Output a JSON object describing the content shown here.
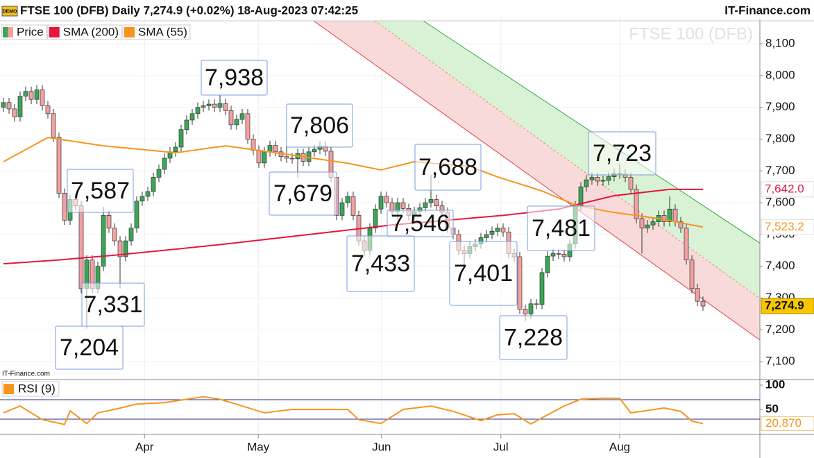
{
  "chart_data": {
    "type": "candlestick",
    "badge": "DEMO",
    "title": "FTSE 100 (DFB) Daily 7,274.9 (+0.02%) 18-Aug-2023 07:42:25",
    "source": "IT-Finance.com",
    "watermark": "FTSE 100 (DFB)",
    "credit": "IT-Finance.com",
    "xlim": [
      -0.625,
      136.25
    ],
    "xticks": [
      {
        "value": 25.4,
        "label": "Apr"
      },
      {
        "value": 45.9,
        "label": "May"
      },
      {
        "value": 68.1,
        "label": "Jun"
      },
      {
        "value": 89.6,
        "label": "Jul"
      },
      {
        "value": 111,
        "label": "Aug"
      }
    ],
    "ylim": [
      7048,
      8183
    ],
    "yticks": [
      {
        "value": 7100,
        "label": "7,100"
      },
      {
        "value": 7200,
        "label": "7,200"
      },
      {
        "value": 7300,
        "label": "7,300"
      },
      {
        "value": 7400,
        "label": "7,400"
      },
      {
        "value": 7500,
        "label": "7,500"
      },
      {
        "value": 7600,
        "label": "7,600"
      },
      {
        "value": 7700,
        "label": "7,700"
      },
      {
        "value": 7800,
        "label": "7,800"
      },
      {
        "value": 7900,
        "label": "7,900"
      },
      {
        "value": 8000,
        "label": "8,000"
      },
      {
        "value": 8100,
        "label": "8,100"
      }
    ],
    "grid": true,
    "price": {
      "name": "Price",
      "up_color": "#3aa655",
      "down_color": "#f2a0a0",
      "last_label": "7,274.9",
      "open": [
        7900,
        7915,
        7895,
        7870,
        7935,
        7950,
        7925,
        7955,
        7905,
        7880,
        7805,
        7630,
        7545,
        7610,
        7590,
        7330,
        7420,
        7330,
        7400,
        7560,
        7520,
        7480,
        7430,
        7480,
        7520,
        7605,
        7620,
        7635,
        7680,
        7705,
        7740,
        7760,
        7775,
        7830,
        7860,
        7880,
        7900,
        7905,
        7910,
        7900,
        7912,
        7890,
        7845,
        7862,
        7880,
        7800,
        7765,
        7725,
        7760,
        7780,
        7760,
        7745,
        7740,
        7738,
        7755,
        7730,
        7760,
        7768,
        7778,
        7762,
        7680,
        7560,
        7600,
        7620,
        7560,
        7480,
        7450,
        7520,
        7580,
        7620,
        7600,
        7572,
        7600,
        7582,
        7560,
        7572,
        7584,
        7600,
        7610,
        7590,
        7570,
        7520,
        7500,
        7450,
        7440,
        7462,
        7470,
        7490,
        7500,
        7510,
        7520,
        7508,
        7440,
        7430,
        7265,
        7250,
        7282,
        7280,
        7380,
        7432,
        7440,
        7438,
        7430,
        7470,
        7590,
        7650,
        7672,
        7680,
        7668,
        7670,
        7682,
        7692,
        7690,
        7680,
        7642,
        7550,
        7520,
        7530,
        7540,
        7560,
        7540,
        7580,
        7540,
        7520,
        7420,
        7330,
        7290
      ],
      "high": [
        7930,
        7930,
        7910,
        7950,
        7965,
        7965,
        7970,
        7970,
        7920,
        7895,
        7820,
        7645,
        7625,
        7625,
        7605,
        7435,
        7435,
        7415,
        7587,
        7575,
        7535,
        7495,
        7495,
        7535,
        7620,
        7635,
        7650,
        7695,
        7720,
        7755,
        7775,
        7790,
        7845,
        7875,
        7895,
        7915,
        7920,
        7925,
        7925,
        7938,
        7927,
        7905,
        7877,
        7895,
        7895,
        7815,
        7780,
        7775,
        7795,
        7795,
        7775,
        7806,
        7755,
        7770,
        7770,
        7775,
        7783,
        7793,
        7793,
        7777,
        7695,
        7615,
        7635,
        7635,
        7575,
        7495,
        7535,
        7595,
        7635,
        7635,
        7615,
        7615,
        7615,
        7597,
        7587,
        7599,
        7615,
        7688,
        7625,
        7605,
        7585,
        7535,
        7515,
        7465,
        7477,
        7485,
        7505,
        7515,
        7525,
        7535,
        7535,
        7523,
        7455,
        7445,
        7280,
        7297,
        7297,
        7395,
        7447,
        7455,
        7455,
        7453,
        7485,
        7605,
        7665,
        7687,
        7695,
        7695,
        7685,
        7697,
        7707,
        7723,
        7705,
        7695,
        7657,
        7565,
        7545,
        7555,
        7575,
        7575,
        7620,
        7595,
        7555,
        7535,
        7435,
        7345,
        7305
      ],
      "low": [
        7885,
        7880,
        7855,
        7855,
        7920,
        7910,
        7910,
        7890,
        7865,
        7790,
        7615,
        7530,
        7530,
        7575,
        7315,
        7204,
        7315,
        7315,
        7385,
        7505,
        7465,
        7331,
        7415,
        7465,
        7505,
        7590,
        7605,
        7620,
        7665,
        7690,
        7725,
        7745,
        7760,
        7815,
        7845,
        7865,
        7885,
        7890,
        7885,
        7885,
        7875,
        7830,
        7830,
        7847,
        7785,
        7750,
        7710,
        7710,
        7745,
        7745,
        7730,
        7725,
        7723,
        7679,
        7715,
        7715,
        7745,
        7753,
        7747,
        7665,
        7545,
        7545,
        7585,
        7545,
        7465,
        7433,
        7435,
        7505,
        7565,
        7585,
        7557,
        7546,
        7567,
        7545,
        7545,
        7557,
        7569,
        7585,
        7575,
        7555,
        7505,
        7485,
        7435,
        7401,
        7425,
        7447,
        7455,
        7475,
        7485,
        7495,
        7493,
        7425,
        7415,
        7250,
        7228,
        7235,
        7265,
        7265,
        7365,
        7417,
        7423,
        7415,
        7415,
        7455,
        7575,
        7635,
        7657,
        7653,
        7653,
        7655,
        7667,
        7675,
        7665,
        7627,
        7535,
        7440,
        7505,
        7515,
        7525,
        7525,
        7525,
        7525,
        7505,
        7405,
        7315,
        7275,
        7260
      ],
      "close": [
        7915,
        7895,
        7870,
        7935,
        7950,
        7925,
        7955,
        7905,
        7880,
        7805,
        7630,
        7545,
        7610,
        7590,
        7330,
        7420,
        7330,
        7400,
        7560,
        7520,
        7480,
        7430,
        7480,
        7520,
        7605,
        7620,
        7635,
        7680,
        7705,
        7740,
        7760,
        7775,
        7830,
        7860,
        7880,
        7900,
        7905,
        7910,
        7900,
        7912,
        7890,
        7845,
        7862,
        7880,
        7800,
        7765,
        7725,
        7760,
        7780,
        7760,
        7745,
        7740,
        7738,
        7755,
        7730,
        7760,
        7768,
        7778,
        7762,
        7680,
        7560,
        7600,
        7620,
        7560,
        7480,
        7450,
        7520,
        7580,
        7620,
        7600,
        7572,
        7600,
        7582,
        7560,
        7572,
        7584,
        7600,
        7610,
        7590,
        7570,
        7520,
        7500,
        7450,
        7440,
        7462,
        7470,
        7490,
        7500,
        7510,
        7520,
        7508,
        7440,
        7430,
        7265,
        7250,
        7282,
        7280,
        7380,
        7432,
        7440,
        7438,
        7430,
        7470,
        7590,
        7650,
        7672,
        7680,
        7668,
        7670,
        7682,
        7692,
        7690,
        7680,
        7642,
        7550,
        7520,
        7530,
        7540,
        7560,
        7540,
        7580,
        7540,
        7520,
        7420,
        7330,
        7290,
        7274.9
      ]
    },
    "series": [
      {
        "name": "SMA (200)",
        "color": "#e4173e",
        "last_label": "7,642.0",
        "x": [
          0,
          10,
          20,
          30,
          40,
          50,
          60,
          70,
          80,
          90,
          100,
          110,
          120,
          126
        ],
        "values": [
          7408,
          7420,
          7435,
          7452,
          7470,
          7490,
          7510,
          7530,
          7545,
          7560,
          7580,
          7622,
          7642,
          7642
        ]
      },
      {
        "name": "SMA (55)",
        "color": "#f7941d",
        "last_label": "7,523.2",
        "x": [
          0,
          8,
          18,
          31,
          40,
          49,
          62,
          68,
          74,
          84,
          89,
          97,
          103,
          109,
          118,
          126
        ],
        "values": [
          7729,
          7805,
          7779,
          7757,
          7779,
          7757,
          7724,
          7703,
          7729,
          7714,
          7681,
          7637,
          7593,
          7572,
          7550,
          7523.2
        ]
      }
    ],
    "channel": [
      {
        "color": "#e0404a",
        "fill": "#f9dada",
        "x": [
          55.875,
          136.25
        ],
        "values": [
          8172,
          7168
        ]
      },
      {
        "color": "#f08a5d",
        "dashed": true,
        "fill": "#d9f2d6",
        "x": [
          66.875,
          136.25
        ],
        "values": [
          8172,
          7299
        ]
      },
      {
        "color": "#2fae3a",
        "x": [
          75.625,
          136.25
        ],
        "values": [
          8172,
          7473
        ]
      }
    ],
    "annotations": [
      {
        "value": 7938,
        "label": "7,938"
      },
      {
        "value": 7806,
        "label": "7,806"
      },
      {
        "value": 7679,
        "label": "7,679"
      },
      {
        "value": 7587,
        "label": "7,587"
      },
      {
        "value": 7331,
        "label": "7,331"
      },
      {
        "value": 7204,
        "label": "7,204"
      },
      {
        "value": 7688,
        "label": "7,688"
      },
      {
        "value": 7546,
        "label": "7,546"
      },
      {
        "value": 7433,
        "label": "7,433"
      },
      {
        "value": 7401,
        "label": "7,401"
      },
      {
        "value": 7481,
        "label": "7,481"
      },
      {
        "value": 7228,
        "label": "7,228"
      },
      {
        "value": 7723,
        "label": "7,723"
      }
    ],
    "rsi": {
      "name": "RSI (9)",
      "color": "#f7941d",
      "level_color": "#2b2b8f",
      "last_label": "20.870",
      "ylim": [
        0,
        110
      ],
      "yticks": [
        50,
        100
      ],
      "levels": [
        30,
        70
      ],
      "x": [
        0,
        3,
        7,
        11,
        12,
        15,
        17,
        20,
        24,
        29,
        36,
        39,
        43,
        47,
        52,
        58,
        62,
        64,
        68,
        72,
        77,
        81,
        86,
        89,
        92,
        95,
        98,
        101,
        104,
        108,
        111,
        113,
        115,
        119,
        122,
        124,
        126
      ],
      "values": [
        43,
        57,
        29,
        19,
        47,
        21,
        43,
        50,
        61,
        64,
        76,
        71,
        57,
        43,
        50,
        50,
        50,
        29,
        21,
        50,
        57,
        46,
        27,
        39,
        41,
        20,
        39,
        57,
        71,
        73,
        73,
        43,
        46,
        53,
        46,
        26,
        20.87
      ]
    }
  }
}
